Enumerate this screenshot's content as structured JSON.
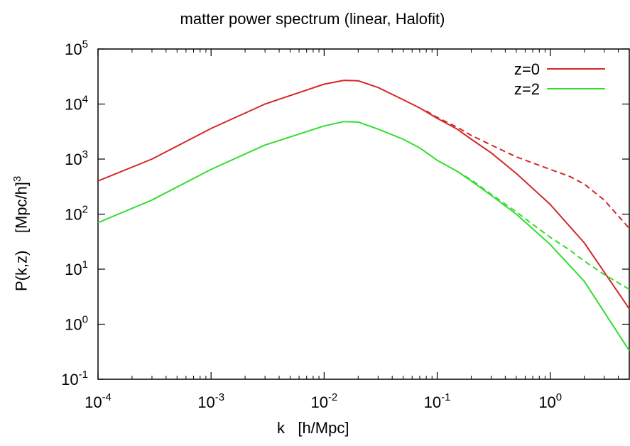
{
  "chart_data": {
    "type": "line",
    "title": "matter power spectrum (linear, Halofit)",
    "xlabel": "k   [h/Mpc]",
    "ylabel": "P(k,z)    [Mpc/h]",
    "ylabel_exponent": "3",
    "xscale": "log",
    "yscale": "log",
    "xlim": [
      0.0001,
      5
    ],
    "ylim": [
      0.1,
      100000
    ],
    "grid": false,
    "legend_position": "top-right",
    "x_ticks": [
      {
        "base": "10",
        "exp": "-4",
        "value": 0.0001
      },
      {
        "base": "10",
        "exp": "-3",
        "value": 0.001
      },
      {
        "base": "10",
        "exp": "-2",
        "value": 0.01
      },
      {
        "base": "10",
        "exp": "-1",
        "value": 0.1
      },
      {
        "base": "10",
        "exp": "0",
        "value": 1
      }
    ],
    "y_ticks": [
      {
        "base": "10",
        "exp": "-1",
        "value": 0.1
      },
      {
        "base": "10",
        "exp": "0",
        "value": 1
      },
      {
        "base": "10",
        "exp": "1",
        "value": 10
      },
      {
        "base": "10",
        "exp": "2",
        "value": 100
      },
      {
        "base": "10",
        "exp": "3",
        "value": 1000
      },
      {
        "base": "10",
        "exp": "4",
        "value": 10000
      },
      {
        "base": "10",
        "exp": "5",
        "value": 100000
      }
    ],
    "series": [
      {
        "name": "z=0",
        "color": "#d62728",
        "style": "solid",
        "x": [
          0.0001,
          0.0003,
          0.001,
          0.003,
          0.01,
          0.015,
          0.02,
          0.03,
          0.05,
          0.07,
          0.1,
          0.15,
          0.2,
          0.3,
          0.5,
          1,
          2,
          5
        ],
        "y": [
          400,
          1000,
          3600,
          10000,
          23000,
          27000,
          26500,
          20000,
          12000,
          8500,
          5500,
          3500,
          2300,
          1300,
          550,
          150,
          30,
          1.9
        ]
      },
      {
        "name": "z=2",
        "color": "#33dd33",
        "style": "solid",
        "x": [
          0.0001,
          0.0003,
          0.001,
          0.003,
          0.01,
          0.015,
          0.02,
          0.03,
          0.05,
          0.07,
          0.1,
          0.15,
          0.2,
          0.3,
          0.5,
          1,
          2,
          5
        ],
        "y": [
          70,
          180,
          650,
          1800,
          4000,
          4800,
          4700,
          3500,
          2300,
          1600,
          950,
          600,
          400,
          220,
          100,
          28,
          6,
          0.33
        ]
      },
      {
        "name": "",
        "color": "#d62728",
        "style": "dashed",
        "x": [
          0.08,
          0.1,
          0.15,
          0.2,
          0.3,
          0.5,
          0.7,
          1,
          1.5,
          2,
          3,
          5
        ],
        "y": [
          7500,
          5700,
          3800,
          2700,
          1800,
          1100,
          850,
          650,
          480,
          350,
          180,
          55
        ]
      },
      {
        "name": "",
        "color": "#33dd33",
        "style": "dashed",
        "x": [
          0.15,
          0.2,
          0.3,
          0.5,
          0.7,
          1,
          1.5,
          2,
          3,
          5
        ],
        "y": [
          600,
          420,
          230,
          110,
          65,
          38,
          22,
          14,
          8,
          4.3
        ]
      }
    ]
  }
}
